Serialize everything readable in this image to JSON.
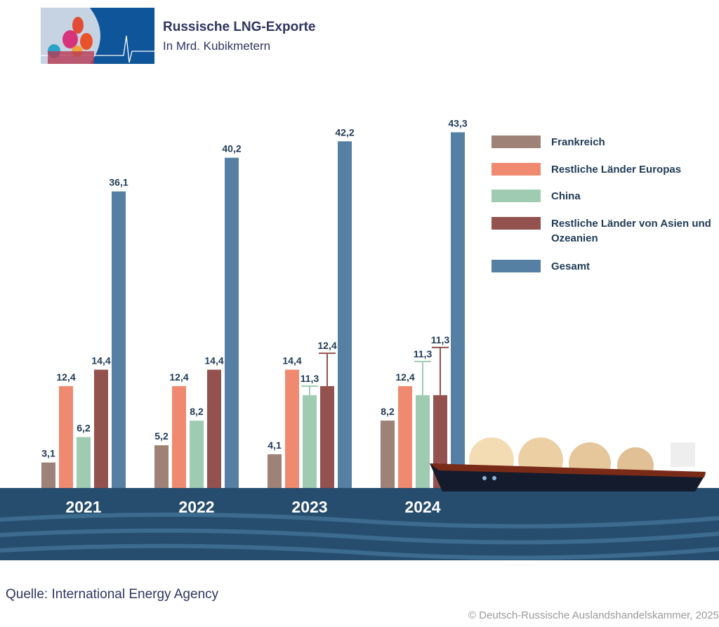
{
  "header": {
    "title": "Russische LNG-Exporte",
    "subtitle": "In Mrd. Kubikmetern"
  },
  "chart_data": {
    "type": "bar",
    "title": "Russische LNG-Exporte",
    "subtitle": "In Mrd. Kubikmetern",
    "categories": [
      "2021",
      "2022",
      "2023",
      "2024"
    ],
    "series": [
      {
        "name": "Frankreich",
        "color": "#9e8177",
        "values": [
          3.1,
          5.2,
          4.1,
          8.2
        ]
      },
      {
        "name": "Restliche Länder Europas",
        "color": "#ef8a70",
        "values": [
          12.4,
          12.4,
          14.4,
          12.4
        ]
      },
      {
        "name": "China",
        "color": "#9fcbb3",
        "values": [
          6.2,
          8.2,
          11.3,
          11.3
        ]
      },
      {
        "name": "Restliche Länder von Asien und Ozeanien",
        "color": "#94524e",
        "values": [
          14.4,
          14.4,
          12.4,
          11.3
        ]
      },
      {
        "name": "Gesamt",
        "color": "#5580a3",
        "values": [
          36.1,
          40.2,
          42.2,
          43.3
        ]
      }
    ],
    "data_labels": [
      [
        "3,1",
        "12,4",
        "6,2",
        "14,4",
        "36,1"
      ],
      [
        "5,2",
        "12,4",
        "8,2",
        "14,4",
        "40,2"
      ],
      [
        "4,1",
        "14,4",
        "11,3",
        "12,4",
        "42,2"
      ],
      [
        "8,2",
        "12,4",
        "11,3",
        "11,3",
        "43,3"
      ]
    ],
    "legend_position": "right",
    "grid": false
  },
  "legend": [
    {
      "label": "Frankreich",
      "color": "#9e8177"
    },
    {
      "label": "Restliche Länder Europas",
      "color": "#ef8a70"
    },
    {
      "label": "China",
      "color": "#9fcbb3"
    },
    {
      "label": "Restliche Länder von Asien und Ozeanien",
      "color": "#94524e"
    },
    {
      "label": "Gesamt",
      "color": "#5580a3"
    }
  ],
  "footer": {
    "source": "Quelle: International Energy Agency",
    "copyright": "© Deutsch-Russische Auslandshandelskammer, 2025"
  },
  "colors": {
    "sea": "#264d6e",
    "title": "#2f3460",
    "label": "#1f3a55"
  }
}
